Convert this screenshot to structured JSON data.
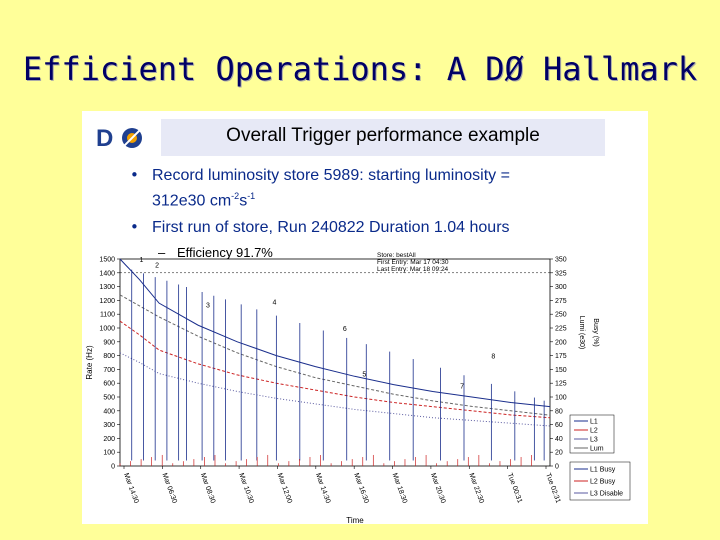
{
  "slide": {
    "title": "Efficient Operations: A DØ Hallmark"
  },
  "figure": {
    "banner_title": "Overall Trigger performance example",
    "logo_text": "DØ",
    "bullets": [
      {
        "line1": "Record luminosity store 5989: starting luminosity =",
        "line2": "312e30 cm",
        "sup1": "-2",
        "mid": "s",
        "sup2": "-1"
      },
      {
        "line1": "First run of store, Run 240822   Duration 1.04 hours"
      }
    ],
    "sub_bullet_dash": "–",
    "sub_bullet": "Efficiency 91.7%",
    "store_info": {
      "line1": "Store: bestAll",
      "line2": "First Entry: Mar 17 04:30",
      "line3": "Last Entry: Mar 18 09:24"
    }
  },
  "colors": {
    "background": "#ffff99",
    "title": "#000066",
    "bullet": "#0a2a8a",
    "banner": "#e7e9f6"
  },
  "chart_data": {
    "type": "line",
    "ylabel": "Rate (Hz)",
    "ylabel_right_lumi": "Lumi (e30)",
    "ylabel_right_busy": "Busy (%)",
    "xlabel": "Time",
    "ylim": [
      0,
      1500
    ],
    "y_ticks": [
      0,
      100,
      200,
      300,
      400,
      500,
      600,
      700,
      800,
      900,
      1000,
      1100,
      1200,
      1300,
      1400,
      1500
    ],
    "right_ticks": [
      0,
      20,
      40,
      60,
      80,
      100,
      125,
      150,
      175,
      200,
      225,
      250,
      275,
      300,
      325,
      350
    ],
    "x_ticks": [
      "Mar 14:30",
      "Mar 06:30",
      "Mar 08:30",
      "Mar 10:30",
      "Mar 12:00",
      "Mar 14:30",
      "Mar 16:30",
      "Mar 18:30",
      "Mar 20:30",
      "Mar 22:30",
      "Tue 00:31",
      "Tue 02:31"
    ],
    "annotations": [
      "1",
      "2",
      "3",
      "4",
      "5",
      "6",
      "7",
      "8"
    ],
    "legend": [
      "L1",
      "L2",
      "L3",
      "Lum",
      "L1 Busy",
      "L2 Busy",
      "L3 Disable"
    ],
    "series": [
      {
        "name": "L1",
        "x": [
          0,
          0.5,
          1,
          2,
          3,
          4,
          5,
          6,
          7,
          8,
          9,
          10,
          11
        ],
        "values": [
          1500,
          1350,
          1180,
          1020,
          900,
          800,
          720,
          650,
          590,
          540,
          500,
          460,
          430
        ]
      },
      {
        "name": "L2",
        "x": [
          0,
          0.5,
          1,
          2,
          3,
          4,
          5,
          6,
          7,
          8,
          9,
          10,
          11
        ],
        "values": [
          1050,
          950,
          840,
          740,
          660,
          600,
          550,
          500,
          460,
          430,
          400,
          370,
          350
        ]
      },
      {
        "name": "L3",
        "x": [
          0,
          0.5,
          1,
          2,
          3,
          4,
          5,
          6,
          7,
          8,
          9,
          10,
          11
        ],
        "values": [
          820,
          750,
          670,
          600,
          540,
          490,
          450,
          410,
          380,
          350,
          330,
          310,
          290
        ]
      },
      {
        "name": "Lum",
        "x": [
          0,
          1,
          2,
          3,
          4,
          5,
          6,
          7,
          8,
          9,
          10,
          11
        ],
        "values": [
          310,
          270,
          235,
          205,
          180,
          160,
          145,
          130,
          118,
          108,
          100,
          92
        ]
      }
    ]
  }
}
